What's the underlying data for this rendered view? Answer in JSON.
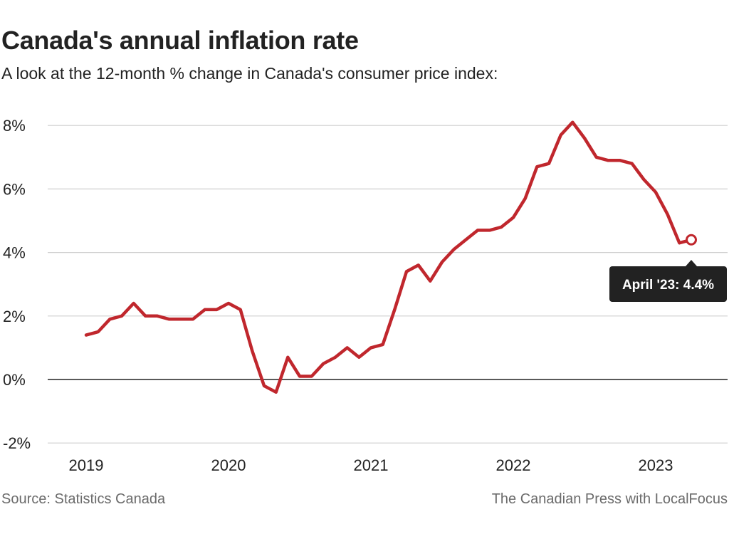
{
  "header": {
    "title": "Canada's annual inflation rate",
    "subtitle": "A look at the 12-month % change in Canada's consumer price index:"
  },
  "footer": {
    "source": "Source:  Statistics Canada",
    "credit": "The Canadian Press with LocalFocus"
  },
  "colors": {
    "line": "#c0272d",
    "grid": "#cfcfcf",
    "zero": "#222222",
    "tooltip_bg": "#222222"
  },
  "chart_data": {
    "type": "line",
    "title": "Canada's annual inflation rate",
    "subtitle": "A look at the 12-month % change in Canada's consumer price index:",
    "xlabel": "",
    "ylabel": "",
    "ylim": [
      -2,
      8.2
    ],
    "yticks": [
      -2,
      0,
      2,
      4,
      6,
      8
    ],
    "ytick_labels": [
      "-2%",
      "0%",
      "2%",
      "4%",
      "6%",
      "8%"
    ],
    "xticks": [
      2019,
      2020,
      2021,
      2022,
      2023
    ],
    "xtick_labels": [
      "2019",
      "2020",
      "2021",
      "2022",
      "2023"
    ],
    "grid": true,
    "start": "2019-01",
    "series": [
      {
        "name": "12-month % change in CPI",
        "values": [
          1.4,
          1.5,
          1.9,
          2.0,
          2.4,
          2.0,
          2.0,
          1.9,
          1.9,
          1.9,
          2.2,
          2.2,
          2.4,
          2.2,
          0.9,
          -0.2,
          -0.4,
          0.7,
          0.1,
          0.1,
          0.5,
          0.7,
          1.0,
          0.7,
          1.0,
          1.1,
          2.2,
          3.4,
          3.6,
          3.1,
          3.7,
          4.1,
          4.4,
          4.7,
          4.7,
          4.8,
          5.1,
          5.7,
          6.7,
          6.8,
          7.7,
          8.1,
          7.6,
          7.0,
          6.9,
          6.9,
          6.8,
          6.3,
          5.9,
          5.2,
          4.3,
          4.4
        ]
      }
    ],
    "annotation": {
      "label": "April '23: 4.4%",
      "period": "2023-04",
      "value": 4.4
    }
  }
}
